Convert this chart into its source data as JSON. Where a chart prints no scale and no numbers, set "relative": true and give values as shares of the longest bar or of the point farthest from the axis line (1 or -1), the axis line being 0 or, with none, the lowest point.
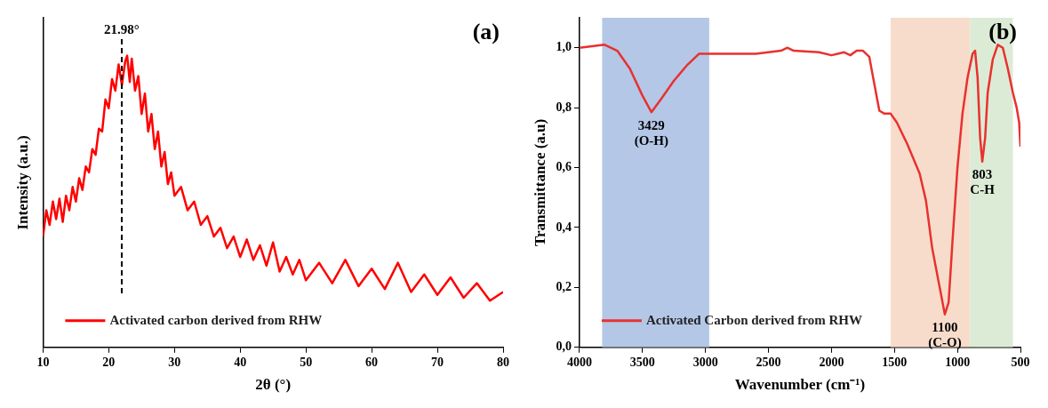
{
  "chart_data": [
    {
      "type": "line",
      "relative": true,
      "xlabel": "2θ (°)",
      "ylabel": "Intensity (a.u.)",
      "xlim": [
        10,
        80
      ],
      "xticks": [
        10,
        20,
        30,
        40,
        50,
        60,
        70,
        80
      ],
      "legend": "bottom left",
      "marker": "none",
      "annotations": [
        "(a)"
      ],
      "ref_lines": [
        {
          "axis": "x",
          "value": 21.98,
          "label": "21.98°",
          "color": "#000000",
          "line_style": "dashed"
        }
      ],
      "series": [
        {
          "name": "Activated carbon derived from RHW",
          "color": "#ff0000",
          "x": [
            10,
            10.5,
            11,
            11.5,
            12,
            12.5,
            13,
            13.5,
            14,
            14.5,
            15,
            15.5,
            16,
            16.5,
            17,
            17.5,
            18,
            18.5,
            19,
            19.5,
            20,
            20.5,
            21,
            21.5,
            22,
            22.5,
            22.8,
            23.2,
            23.5,
            24,
            24.5,
            25,
            25.5,
            26,
            26.5,
            27,
            27.5,
            28,
            28.5,
            29,
            29.5,
            30,
            31,
            32,
            33,
            34,
            35,
            36,
            37,
            38,
            39,
            40,
            41,
            42,
            43,
            44,
            45,
            46,
            47,
            48,
            49,
            50,
            52,
            54,
            56,
            58,
            60,
            62,
            64,
            66,
            68,
            70,
            72,
            74,
            76,
            78,
            80
          ],
          "values": [
            0.38,
            0.47,
            0.42,
            0.5,
            0.44,
            0.51,
            0.43,
            0.52,
            0.47,
            0.55,
            0.5,
            0.58,
            0.54,
            0.62,
            0.6,
            0.68,
            0.66,
            0.75,
            0.74,
            0.85,
            0.82,
            0.92,
            0.88,
            0.97,
            0.9,
            0.98,
            1.0,
            0.91,
            0.99,
            0.88,
            0.93,
            0.8,
            0.87,
            0.74,
            0.8,
            0.68,
            0.74,
            0.62,
            0.67,
            0.56,
            0.6,
            0.52,
            0.55,
            0.47,
            0.5,
            0.42,
            0.45,
            0.38,
            0.41,
            0.34,
            0.38,
            0.31,
            0.37,
            0.3,
            0.35,
            0.28,
            0.36,
            0.26,
            0.31,
            0.25,
            0.3,
            0.23,
            0.29,
            0.22,
            0.3,
            0.21,
            0.27,
            0.2,
            0.29,
            0.19,
            0.25,
            0.18,
            0.24,
            0.17,
            0.22,
            0.16,
            0.19
          ]
        }
      ]
    },
    {
      "type": "line",
      "xlabel": "Wavenumber (cm⁻¹)",
      "ylabel": "Transmittance (a.u)",
      "xlim": [
        4000,
        500
      ],
      "xticks": [
        4000,
        3500,
        3000,
        2500,
        2000,
        1500,
        1000,
        500
      ],
      "ylim": [
        0,
        1.1
      ],
      "yticks": [
        {
          "value": 0,
          "label": "0,0"
        },
        {
          "value": 0.2,
          "label": "0,2"
        },
        {
          "value": 0.4,
          "label": "0,4"
        },
        {
          "value": 0.6,
          "label": "0,6"
        },
        {
          "value": 0.8,
          "label": "0,8"
        },
        {
          "value": 1.0,
          "label": "1,0"
        }
      ],
      "legend": "bottom left",
      "marker": "none",
      "bands": [
        {
          "axis": "x",
          "from": 3820,
          "to": 2970,
          "color": "#b4c7e7"
        },
        {
          "axis": "x",
          "from": 1530,
          "to": 900,
          "color": "#f8dccb"
        },
        {
          "axis": "x",
          "from": 900,
          "to": 560,
          "color": "#dcebd5"
        }
      ],
      "annotations": [
        {
          "text": "3429\n(O-H)",
          "x": 3429,
          "y": 0.785
        },
        {
          "text": "1100\n(C-O)",
          "x": 1100,
          "y": 0.11
        },
        {
          "text": "803\nC-H",
          "x": 803,
          "y": 0.62
        },
        "(b)"
      ],
      "series": [
        {
          "name": "Activated Carbon derived from RHW",
          "color": "#e8312f",
          "x": [
            4000,
            3900,
            3800,
            3700,
            3600,
            3500,
            3429,
            3350,
            3250,
            3150,
            3050,
            2950,
            2800,
            2600,
            2400,
            2350,
            2300,
            2100,
            2000,
            1950,
            1900,
            1850,
            1800,
            1750,
            1700,
            1660,
            1620,
            1580,
            1530,
            1480,
            1400,
            1300,
            1250,
            1200,
            1150,
            1100,
            1070,
            1040,
            1000,
            960,
            920,
            880,
            860,
            840,
            820,
            803,
            780,
            760,
            720,
            680,
            640,
            600,
            560,
            530,
            510,
            500
          ],
          "values": [
            1.0,
            1.005,
            1.01,
            0.99,
            0.93,
            0.84,
            0.785,
            0.83,
            0.89,
            0.94,
            0.98,
            0.98,
            0.98,
            0.98,
            0.99,
            1.0,
            0.99,
            0.985,
            0.975,
            0.98,
            0.985,
            0.975,
            0.99,
            0.99,
            0.97,
            0.88,
            0.79,
            0.78,
            0.78,
            0.75,
            0.68,
            0.58,
            0.49,
            0.33,
            0.22,
            0.11,
            0.15,
            0.35,
            0.6,
            0.78,
            0.9,
            0.98,
            0.99,
            0.9,
            0.7,
            0.62,
            0.7,
            0.85,
            0.96,
            1.01,
            1.0,
            0.93,
            0.85,
            0.8,
            0.75,
            0.67
          ]
        }
      ]
    }
  ]
}
